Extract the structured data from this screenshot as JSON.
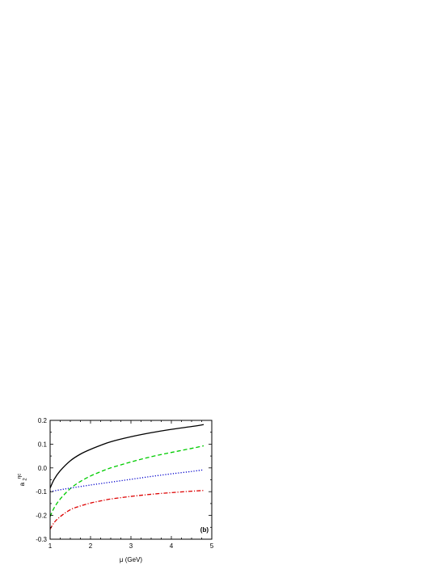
{
  "chart_data": {
    "type": "line",
    "title": "",
    "panel_label": "(b)",
    "xlabel": "μ (GeV)",
    "ylabel_main": "a",
    "ylabel_sub": "2",
    "ylabel_sup": "ηc",
    "xlim": [
      1,
      5
    ],
    "ylim": [
      -0.3,
      0.2
    ],
    "xticks": [
      1,
      2,
      3,
      4,
      5
    ],
    "yticks": [
      -0.3,
      -0.2,
      -0.1,
      0.0,
      0.1,
      0.2
    ],
    "ytick_labels": [
      "-0.3",
      "-0.2",
      "-0.1",
      "0.0",
      "0.1",
      "0.2"
    ],
    "xtick_labels": [
      "1",
      "2",
      "3",
      "4",
      "5"
    ],
    "grid": false,
    "series": [
      {
        "style": "solid",
        "color": "#000000",
        "x": [
          1.0,
          1.1,
          1.25,
          1.5,
          1.75,
          2.0,
          2.25,
          2.5,
          3.0,
          3.5,
          4.0,
          4.5,
          4.8
        ],
        "y": [
          -0.085,
          -0.048,
          -0.012,
          0.03,
          0.058,
          0.078,
          0.095,
          0.11,
          0.131,
          0.148,
          0.162,
          0.174,
          0.182
        ]
      },
      {
        "style": "dashed",
        "color": "#00cc00",
        "x": [
          1.0,
          1.1,
          1.25,
          1.5,
          1.75,
          2.0,
          2.25,
          2.5,
          3.0,
          3.5,
          4.0,
          4.5,
          4.8
        ],
        "y": [
          -0.205,
          -0.168,
          -0.131,
          -0.087,
          -0.057,
          -0.034,
          -0.016,
          0.0,
          0.025,
          0.047,
          0.065,
          0.082,
          0.093
        ]
      },
      {
        "style": "dotted",
        "color": "#0000cc",
        "x": [
          1.0,
          1.25,
          1.5,
          2.0,
          2.5,
          3.0,
          3.5,
          4.0,
          4.5,
          4.8
        ],
        "y": [
          -0.1,
          -0.092,
          -0.085,
          -0.072,
          -0.06,
          -0.048,
          -0.036,
          -0.025,
          -0.015,
          -0.008
        ]
      },
      {
        "style": "dashdot",
        "color": "#dd0000",
        "x": [
          1.0,
          1.1,
          1.25,
          1.5,
          1.75,
          2.0,
          2.25,
          2.5,
          3.0,
          3.5,
          4.0,
          4.5,
          4.8
        ],
        "y": [
          -0.258,
          -0.23,
          -0.205,
          -0.176,
          -0.16,
          -0.148,
          -0.139,
          -0.131,
          -0.12,
          -0.111,
          -0.104,
          -0.098,
          -0.095
        ]
      }
    ]
  }
}
